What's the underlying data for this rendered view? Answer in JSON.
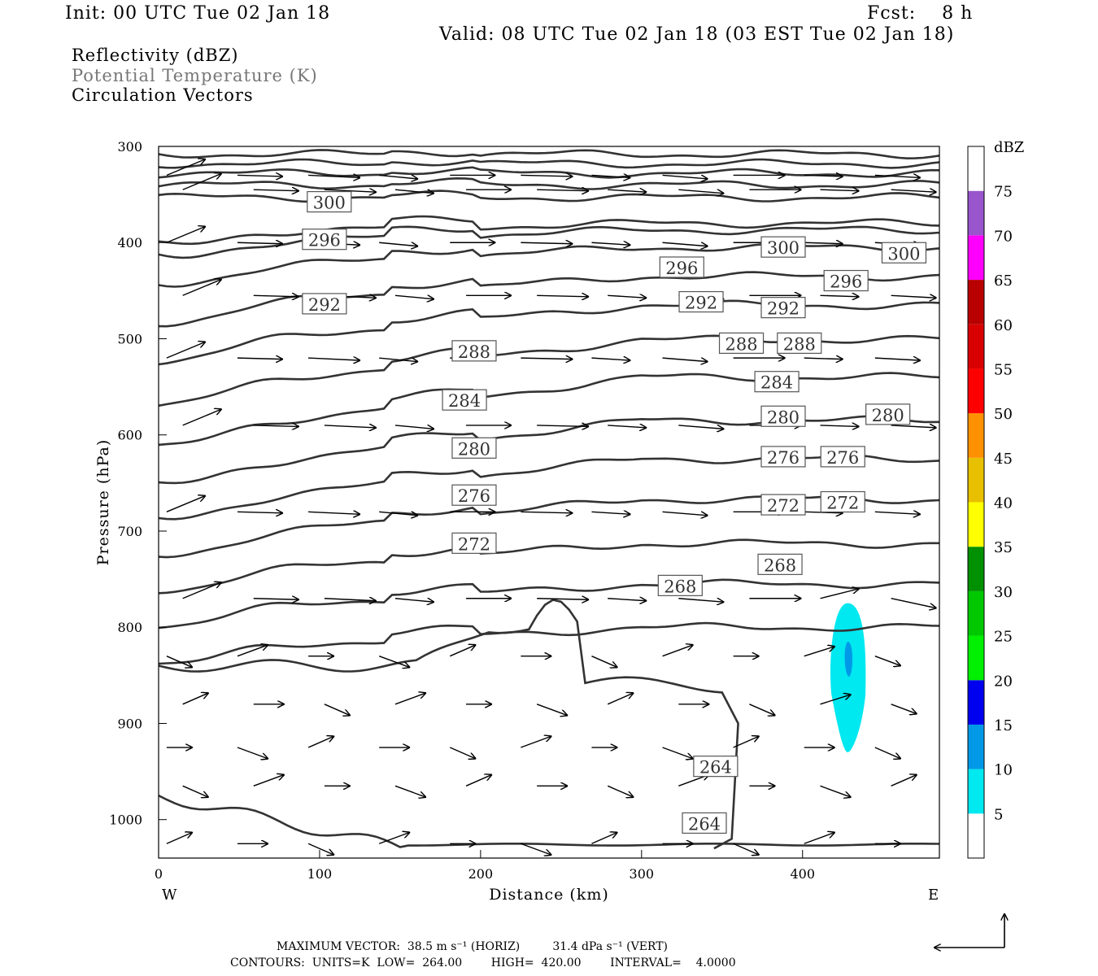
{
  "header": {
    "init": "Init: 00 UTC Tue 02 Jan 18",
    "fcst": "Fcst:    8 h",
    "valid": "Valid: 08 UTC Tue 02 Jan 18 (03 EST Tue 02 Jan 18)"
  },
  "legend": {
    "reflectivity": "Reflectivity (dBZ)",
    "theta": "Potential Temperature (K)",
    "circulation": "Circulation Vectors"
  },
  "footer": {
    "max_vector": "MAXIMUM VECTOR:  38.5 m s⁻¹ (HORIZ)         31.4 dPa s⁻¹ (VERT)",
    "contours": "CONTOURS:  UNITS=K  LOW=  264.00        HIGH=  420.00        INTERVAL=    4.0000"
  },
  "chart_data": {
    "type": "cross-section",
    "xlabel": "Distance (km)",
    "ylabel": "Pressure (hPa)",
    "xlim": [
      0,
      485
    ],
    "ylim": [
      1040,
      300
    ],
    "x_ticks": [
      0,
      100,
      200,
      300,
      400
    ],
    "y_ticks": [
      300,
      400,
      500,
      600,
      700,
      800,
      900,
      1000
    ],
    "x_end_labels": {
      "left": "W",
      "right": "E"
    },
    "colorbar": {
      "title": "dBZ",
      "levels": [
        5,
        10,
        15,
        20,
        25,
        30,
        35,
        40,
        45,
        50,
        55,
        60,
        65,
        70,
        75
      ],
      "colors": [
        "#ffffff",
        "#00e8f0",
        "#0099e8",
        "#0000f0",
        "#00f000",
        "#00c800",
        "#009000",
        "#ffff00",
        "#e8c000",
        "#ff9000",
        "#ff0000",
        "#d80000",
        "#b80000",
        "#ff00ff",
        "#9955cc",
        "#ffffff"
      ]
    },
    "theta_contour_labels": [
      {
        "value": "300",
        "x": 106,
        "p": 358
      },
      {
        "value": "296",
        "x": 103,
        "p": 397
      },
      {
        "value": "292",
        "x": 103,
        "p": 464
      },
      {
        "value": "288",
        "x": 196,
        "p": 513
      },
      {
        "value": "284",
        "x": 190,
        "p": 564
      },
      {
        "value": "280",
        "x": 196,
        "p": 614
      },
      {
        "value": "276",
        "x": 196,
        "p": 663
      },
      {
        "value": "272",
        "x": 196,
        "p": 713
      },
      {
        "value": "268",
        "x": 324,
        "p": 757
      },
      {
        "value": "264",
        "x": 346,
        "p": 945
      },
      {
        "value": "264",
        "x": 339,
        "p": 1004
      },
      {
        "value": "296",
        "x": 325,
        "p": 426
      },
      {
        "value": "292",
        "x": 337,
        "p": 462
      },
      {
        "value": "288",
        "x": 362,
        "p": 505
      },
      {
        "value": "284",
        "x": 384,
        "p": 545
      },
      {
        "value": "280",
        "x": 388,
        "p": 581
      },
      {
        "value": "276",
        "x": 388,
        "p": 623
      },
      {
        "value": "272",
        "x": 388,
        "p": 673
      },
      {
        "value": "268",
        "x": 386,
        "p": 735
      },
      {
        "value": "300",
        "x": 388,
        "p": 405
      },
      {
        "value": "292",
        "x": 388,
        "p": 468
      },
      {
        "value": "288",
        "x": 398,
        "p": 505
      },
      {
        "value": "296",
        "x": 427,
        "p": 440
      },
      {
        "value": "300",
        "x": 463,
        "p": 411
      },
      {
        "value": "280",
        "x": 453,
        "p": 579
      },
      {
        "value": "276",
        "x": 425,
        "p": 623
      },
      {
        "value": "272",
        "x": 425,
        "p": 670
      }
    ],
    "reflectivity_cell": {
      "x_center": 428,
      "p_top": 775,
      "p_bottom": 930,
      "max_dbz": 10
    }
  }
}
